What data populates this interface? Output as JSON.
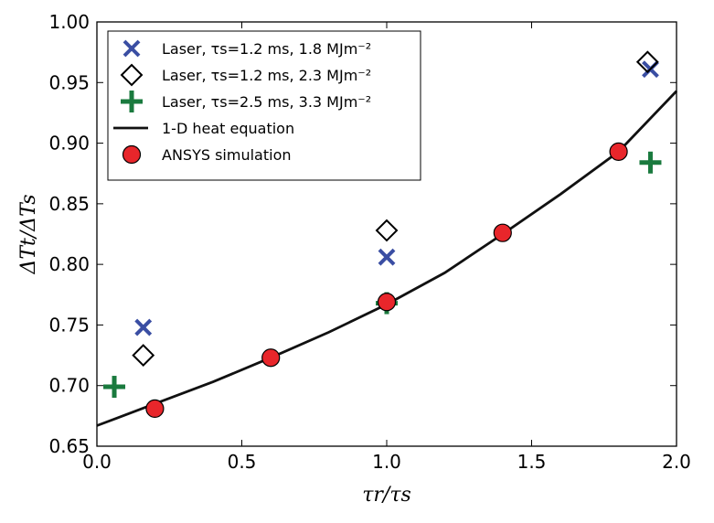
{
  "chart_data": {
    "type": "scatter",
    "xlabel": "τr/τs",
    "ylabel": "ΔTt/ΔTs",
    "xlim": [
      0.0,
      2.0
    ],
    "ylim": [
      0.65,
      1.0
    ],
    "x_ticks": [
      "0.0",
      "0.5",
      "1.0",
      "1.5",
      "2.0"
    ],
    "y_ticks": [
      "0.65",
      "0.70",
      "0.75",
      "0.80",
      "0.85",
      "0.90",
      "0.95",
      "1.00"
    ],
    "grid": false,
    "legend_position": "top-left",
    "series": [
      {
        "name": "Laser, τs=1.2 ms, 1.8 MJm⁻²",
        "marker": "x",
        "color": "#3a4ea3",
        "points": [
          [
            0.16,
            0.748
          ],
          [
            1.0,
            0.806
          ],
          [
            1.91,
            0.961
          ]
        ]
      },
      {
        "name": "Laser, τs=1.2 ms, 2.3 MJm⁻²",
        "marker": "diamond",
        "color": "#000000",
        "points": [
          [
            0.16,
            0.725
          ],
          [
            1.0,
            0.828
          ],
          [
            1.9,
            0.967
          ]
        ]
      },
      {
        "name": "Laser, τs=2.5 ms, 3.3 MJm⁻²",
        "marker": "plus",
        "color": "#1a7a3e",
        "points": [
          [
            0.06,
            0.699
          ],
          [
            1.0,
            0.768
          ],
          [
            1.91,
            0.884
          ]
        ]
      },
      {
        "name": "1-D heat equation",
        "marker": "line",
        "color": "#111111",
        "points": [
          [
            0.0,
            0.667
          ],
          [
            0.2,
            0.685
          ],
          [
            0.4,
            0.703
          ],
          [
            0.6,
            0.723
          ],
          [
            0.8,
            0.744
          ],
          [
            1.0,
            0.767
          ],
          [
            1.2,
            0.793
          ],
          [
            1.4,
            0.825
          ],
          [
            1.6,
            0.858
          ],
          [
            1.8,
            0.893
          ],
          [
            2.0,
            0.943
          ]
        ]
      },
      {
        "name": "ANSYS simulation",
        "marker": "circle",
        "color": "#e8262b",
        "points": [
          [
            0.2,
            0.681
          ],
          [
            0.6,
            0.723
          ],
          [
            1.0,
            0.769
          ],
          [
            1.4,
            0.826
          ],
          [
            1.8,
            0.893
          ]
        ]
      }
    ]
  }
}
